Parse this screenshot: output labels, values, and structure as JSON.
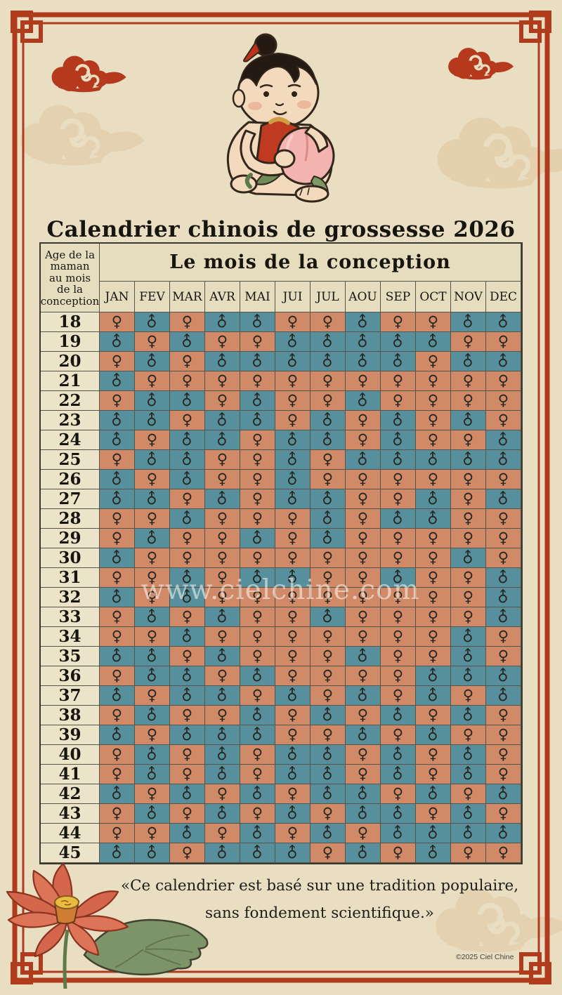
{
  "page": {
    "title": "Calendrier chinois de grossesse 2026",
    "watermark": "www.cielchine.com",
    "footer_quote_line1": "«Ce calendrier est basé sur une tradition populaire,",
    "footer_quote_line2": "sans fondement scientifique.»",
    "copyright": "©2025 Ciel Chine"
  },
  "table": {
    "age_header": "Age de la\nmaman\nau mois\nde la\nconception",
    "month_header": "Le mois de la conception",
    "months": [
      "JAN",
      "FEV",
      "MAR",
      "AVR",
      "MAI",
      "JUI",
      "JUL",
      "AOU",
      "SEP",
      "OCT",
      "NOV",
      "DEC"
    ],
    "symbols": {
      "F": "♀",
      "M": "♂"
    },
    "rows": [
      {
        "age": "18",
        "cells": [
          "F",
          "M",
          "F",
          "M",
          "M",
          "F",
          "F",
          "M",
          "F",
          "F",
          "M",
          "M"
        ]
      },
      {
        "age": "19",
        "cells": [
          "M",
          "F",
          "M",
          "F",
          "F",
          "M",
          "M",
          "M",
          "M",
          "M",
          "F",
          "F"
        ]
      },
      {
        "age": "20",
        "cells": [
          "F",
          "M",
          "F",
          "M",
          "M",
          "M",
          "M",
          "M",
          "M",
          "F",
          "M",
          "M"
        ]
      },
      {
        "age": "21",
        "cells": [
          "M",
          "F",
          "F",
          "F",
          "F",
          "F",
          "F",
          "F",
          "F",
          "F",
          "F",
          "F"
        ]
      },
      {
        "age": "22",
        "cells": [
          "F",
          "M",
          "M",
          "F",
          "M",
          "F",
          "F",
          "M",
          "F",
          "F",
          "F",
          "F"
        ]
      },
      {
        "age": "23",
        "cells": [
          "M",
          "M",
          "F",
          "M",
          "M",
          "F",
          "M",
          "F",
          "M",
          "F",
          "M",
          "F"
        ]
      },
      {
        "age": "24",
        "cells": [
          "M",
          "F",
          "M",
          "M",
          "F",
          "M",
          "M",
          "F",
          "M",
          "F",
          "F",
          "M"
        ]
      },
      {
        "age": "25",
        "cells": [
          "F",
          "M",
          "M",
          "F",
          "F",
          "M",
          "F",
          "M",
          "M",
          "M",
          "M",
          "M"
        ]
      },
      {
        "age": "26",
        "cells": [
          "M",
          "F",
          "M",
          "F",
          "F",
          "M",
          "F",
          "F",
          "F",
          "F",
          "F",
          "F"
        ]
      },
      {
        "age": "27",
        "cells": [
          "M",
          "M",
          "F",
          "M",
          "F",
          "M",
          "M",
          "F",
          "F",
          "M",
          "F",
          "M"
        ]
      },
      {
        "age": "28",
        "cells": [
          "F",
          "F",
          "M",
          "F",
          "F",
          "F",
          "M",
          "F",
          "M",
          "M",
          "F",
          "F"
        ]
      },
      {
        "age": "29",
        "cells": [
          "F",
          "M",
          "F",
          "F",
          "M",
          "F",
          "M",
          "F",
          "F",
          "F",
          "F",
          "F"
        ]
      },
      {
        "age": "30",
        "cells": [
          "M",
          "F",
          "F",
          "F",
          "F",
          "F",
          "F",
          "F",
          "F",
          "F",
          "M",
          "F"
        ]
      },
      {
        "age": "31",
        "cells": [
          "F",
          "F",
          "M",
          "F",
          "M",
          "M",
          "F",
          "F",
          "M",
          "F",
          "F",
          "M"
        ]
      },
      {
        "age": "32",
        "cells": [
          "M",
          "F",
          "M",
          "F",
          "F",
          "F",
          "F",
          "F",
          "F",
          "F",
          "F",
          "M"
        ]
      },
      {
        "age": "33",
        "cells": [
          "F",
          "M",
          "F",
          "M",
          "F",
          "F",
          "M",
          "F",
          "F",
          "F",
          "F",
          "M"
        ]
      },
      {
        "age": "34",
        "cells": [
          "F",
          "F",
          "M",
          "F",
          "F",
          "F",
          "F",
          "F",
          "F",
          "F",
          "M",
          "F"
        ]
      },
      {
        "age": "35",
        "cells": [
          "M",
          "M",
          "F",
          "M",
          "F",
          "F",
          "F",
          "M",
          "F",
          "F",
          "M",
          "F"
        ]
      },
      {
        "age": "36",
        "cells": [
          "F",
          "M",
          "M",
          "F",
          "M",
          "F",
          "F",
          "F",
          "F",
          "M",
          "M",
          "M"
        ]
      },
      {
        "age": "37",
        "cells": [
          "M",
          "F",
          "M",
          "M",
          "F",
          "M",
          "F",
          "M",
          "F",
          "M",
          "F",
          "M"
        ]
      },
      {
        "age": "38",
        "cells": [
          "F",
          "M",
          "F",
          "F",
          "M",
          "F",
          "M",
          "F",
          "M",
          "F",
          "M",
          "F"
        ]
      },
      {
        "age": "39",
        "cells": [
          "M",
          "F",
          "M",
          "M",
          "M",
          "F",
          "F",
          "M",
          "F",
          "M",
          "F",
          "F"
        ]
      },
      {
        "age": "40",
        "cells": [
          "F",
          "M",
          "F",
          "M",
          "F",
          "M",
          "M",
          "F",
          "M",
          "F",
          "M",
          "F"
        ]
      },
      {
        "age": "41",
        "cells": [
          "F",
          "M",
          "F",
          "M",
          "F",
          "M",
          "M",
          "F",
          "M",
          "F",
          "M",
          "F"
        ]
      },
      {
        "age": "42",
        "cells": [
          "M",
          "F",
          "M",
          "F",
          "M",
          "F",
          "M",
          "M",
          "F",
          "M",
          "F",
          "M"
        ]
      },
      {
        "age": "43",
        "cells": [
          "F",
          "M",
          "F",
          "M",
          "F",
          "M",
          "F",
          "M",
          "M",
          "F",
          "M",
          "F"
        ]
      },
      {
        "age": "44",
        "cells": [
          "F",
          "F",
          "M",
          "F",
          "M",
          "F",
          "M",
          "F",
          "M",
          "M",
          "M",
          "M"
        ]
      },
      {
        "age": "45",
        "cells": [
          "M",
          "M",
          "F",
          "M",
          "M",
          "M",
          "F",
          "M",
          "F",
          "M",
          "F",
          "F"
        ]
      }
    ]
  },
  "colors": {
    "girl_bg": "#d18a68",
    "boy_bg": "#588f9c",
    "frame_red": "#b13b1d",
    "faint_cloud": "#e0c69e",
    "background": "#e9dec1"
  }
}
